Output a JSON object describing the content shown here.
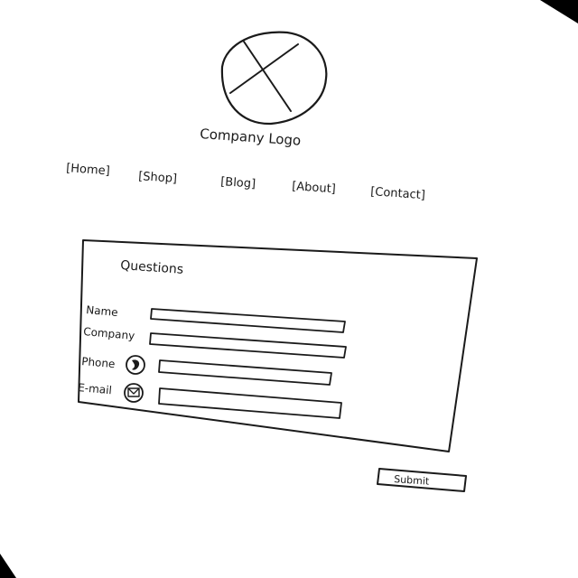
{
  "header": {
    "logo_label": "Company Logo"
  },
  "nav": {
    "items": [
      {
        "label": "[Home]"
      },
      {
        "label": "[Shop]"
      },
      {
        "label": "[Blog]"
      },
      {
        "label": "[About]"
      },
      {
        "label": "[Contact]"
      }
    ]
  },
  "form": {
    "title": "Questions",
    "fields": [
      {
        "label": "Name",
        "value": ""
      },
      {
        "label": "Company",
        "value": ""
      },
      {
        "label": "Phone",
        "value": ""
      },
      {
        "label": "E-mail",
        "value": ""
      }
    ],
    "submit_label": "Submit"
  },
  "icons": {
    "logo": "logo-placeholder-icon",
    "phone": "phone-icon",
    "email": "envelope-icon"
  },
  "colors": {
    "paper": "#ffffff",
    "ink": "#1a1a1a",
    "background": "#000000"
  }
}
